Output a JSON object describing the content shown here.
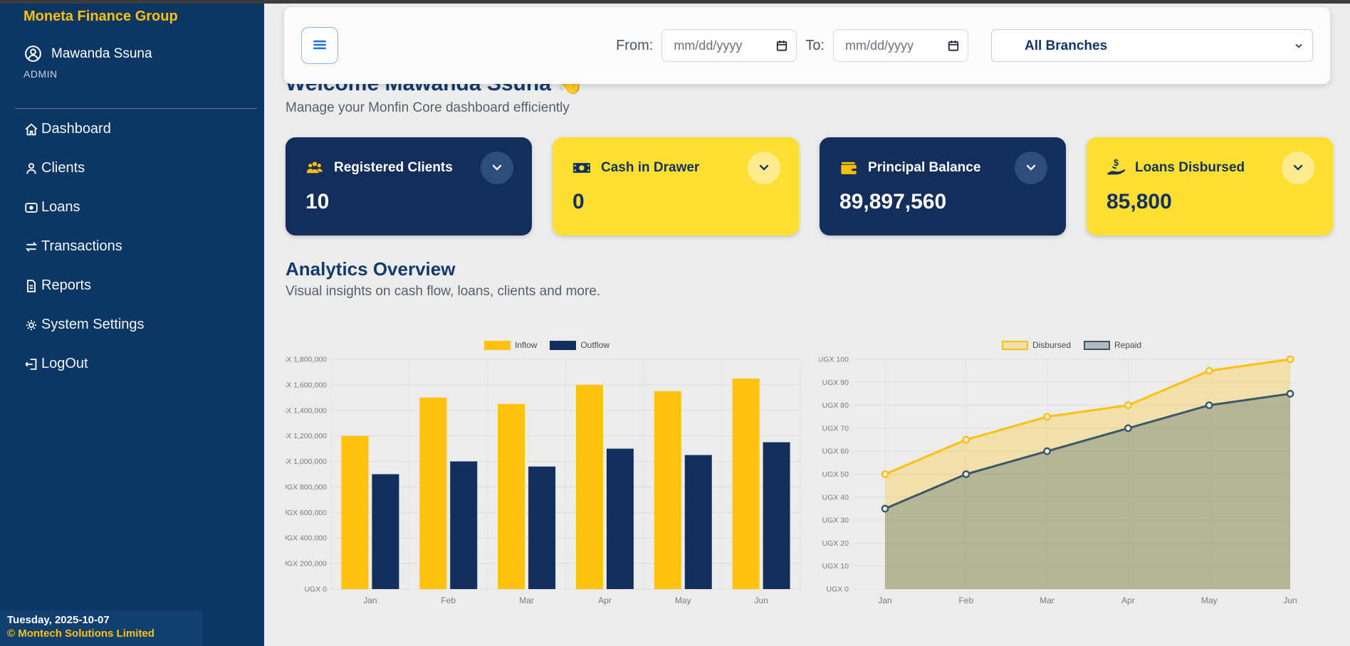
{
  "sidebar": {
    "brand": "Moneta Finance Group",
    "user": {
      "name": "Mawanda Ssuna",
      "role": "ADMIN"
    },
    "items": [
      {
        "id": "dashboard",
        "label": "Dashboard",
        "icon": "home-icon"
      },
      {
        "id": "clients",
        "label": "Clients",
        "icon": "person-icon"
      },
      {
        "id": "loans",
        "label": "Loans",
        "icon": "cash-icon"
      },
      {
        "id": "transactions",
        "label": "Transactions",
        "icon": "arrows-exchange-icon"
      },
      {
        "id": "reports",
        "label": "Reports",
        "icon": "document-icon"
      },
      {
        "id": "system-settings",
        "label": "System Settings",
        "icon": "gear-icon"
      },
      {
        "id": "logout",
        "label": "LogOut",
        "icon": "logout-icon"
      }
    ],
    "footer": {
      "date": "Tuesday, 2025-10-07",
      "copyright": "© Montech Solutions Limited"
    }
  },
  "topbar": {
    "menu_icon": "hamburger-icon",
    "from_label": "From:",
    "to_label": "To:",
    "date_placeholder": "mm/dd/yyyy",
    "branch_selected": "All Branches"
  },
  "welcome": {
    "title": "Welcome Mawanda Ssuna 👋",
    "subtitle": "Manage your Monfin Core dashboard efficiently"
  },
  "stats": [
    {
      "label": "Registered Clients",
      "value": "10",
      "icon": "users-icon",
      "theme": "navy"
    },
    {
      "label": "Cash in Drawer",
      "value": "0",
      "icon": "banknote-icon",
      "theme": "yellow"
    },
    {
      "label": "Principal Balance",
      "value": "89,897,560",
      "icon": "wallet-icon",
      "theme": "navy"
    },
    {
      "label": "Loans Disbursed",
      "value": "85,800",
      "icon": "hand-dollar-icon",
      "theme": "yellow"
    }
  ],
  "analytics": {
    "title": "Analytics Overview",
    "subtitle": "Visual insights on cash flow, loans, clients and more."
  },
  "chart_data": [
    {
      "type": "bar",
      "categories": [
        "Jan",
        "Feb",
        "Mar",
        "Apr",
        "May",
        "Jun"
      ],
      "series": [
        {
          "name": "Inflow",
          "color": "#ffc20e",
          "values": [
            1200000,
            1500000,
            1450000,
            1600000,
            1550000,
            1650000
          ]
        },
        {
          "name": "Outflow",
          "color": "#12305b",
          "values": [
            900000,
            1000000,
            960000,
            1100000,
            1050000,
            1150000
          ]
        }
      ],
      "ylim": [
        0,
        1800000
      ],
      "ytick_step": 200000,
      "ytick_prefix": "UGX ",
      "grid": true,
      "legend_position": "top"
    },
    {
      "type": "line",
      "categories": [
        "Jan",
        "Feb",
        "Mar",
        "Apr",
        "May",
        "Jun"
      ],
      "series": [
        {
          "name": "Disbursed",
          "color": "#ffc107",
          "fill": "rgba(255,193,7,0.28)",
          "values": [
            50,
            65,
            75,
            80,
            95,
            100
          ]
        },
        {
          "name": "Repaid",
          "color": "#3a5866",
          "fill": "rgba(84,110,122,0.38)",
          "values": [
            35,
            50,
            60,
            70,
            80,
            85
          ]
        }
      ],
      "ylim": [
        0,
        100
      ],
      "ytick_step": 10,
      "ytick_prefix": "UGX ",
      "grid": true,
      "legend_position": "top"
    }
  ],
  "colors": {
    "sidebar_navy": "#0c3764",
    "card_navy": "#132e5a",
    "card_yellow": "#ffe032",
    "brand_yellow": "#ffc107",
    "heading_navy": "#133a6a",
    "page_bg": "#ececec"
  }
}
